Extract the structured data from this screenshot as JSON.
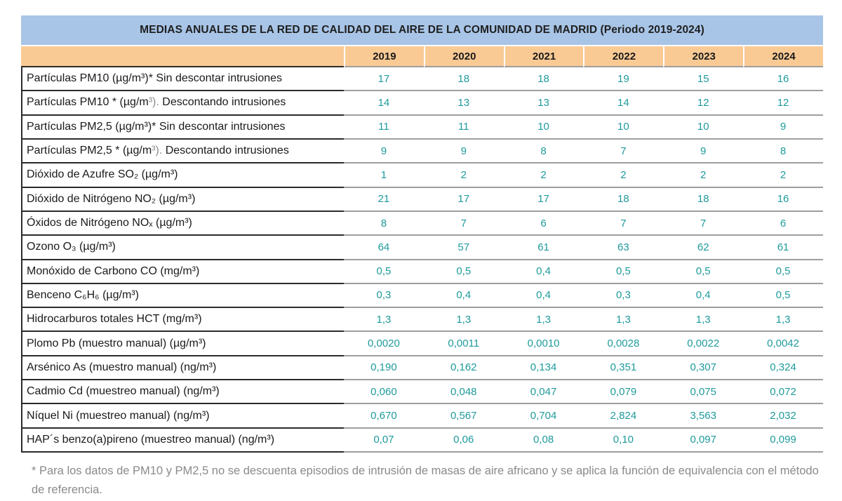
{
  "title": "MEDIAS ANUALES DE LA RED DE CALIDAD DEL AIRE DE LA COMUNIDAD DE MADRID (Periodo 2019-2024)",
  "years": [
    "2019",
    "2020",
    "2021",
    "2022",
    "2023",
    "2024"
  ],
  "rows": [
    {
      "pre": "Partículas PM10 (µg/m³)* Sin descontar intrusiones",
      "gray": "",
      "post": "",
      "values": [
        "17",
        "18",
        "18",
        "19",
        "15",
        "16"
      ]
    },
    {
      "pre": "Partículas PM10 * (µg/m",
      "gray": "³). ",
      "post": "Descontando intrusiones",
      "values": [
        "14",
        "13",
        "13",
        "14",
        "12",
        "12"
      ]
    },
    {
      "pre": "Partículas PM2,5 (µg/m³)* Sin descontar intrusiones",
      "gray": "",
      "post": "",
      "values": [
        "11",
        "11",
        "10",
        "10",
        "10",
        "9"
      ]
    },
    {
      "pre": "Partículas PM2,5 * (µg/m",
      "gray": "³). ",
      "post": "Descontando intrusiones",
      "values": [
        "9",
        "9",
        "8",
        "7",
        "9",
        "8"
      ]
    },
    {
      "pre": "Dióxido de Azufre SO₂ (µg/m³)",
      "gray": "",
      "post": "",
      "values": [
        "1",
        "2",
        "2",
        "2",
        "2",
        "2"
      ]
    },
    {
      "pre": "Dióxido de Nitrógeno NO₂ (µg/m³)",
      "gray": "",
      "post": "",
      "values": [
        "21",
        "17",
        "17",
        "18",
        "18",
        "16"
      ]
    },
    {
      "pre": "Óxidos de Nitrógeno NOₓ (µg/m³)",
      "gray": "",
      "post": "",
      "values": [
        "8",
        "7",
        "6",
        "7",
        "7",
        "6"
      ]
    },
    {
      "pre": "Ozono O₃ (µg/m³)",
      "gray": "",
      "post": "",
      "values": [
        "64",
        "57",
        "61",
        "63",
        "62",
        "61"
      ]
    },
    {
      "pre": "Monóxido de Carbono CO (mg/m³)",
      "gray": "",
      "post": "",
      "values": [
        "0,5",
        "0,5",
        "0,4",
        "0,5",
        "0,5",
        "0,5"
      ]
    },
    {
      "pre": "Benceno C₆H₆ (µg/m³)",
      "gray": "",
      "post": "",
      "values": [
        "0,3",
        "0,4",
        "0,4",
        "0,3",
        "0,4",
        "0,5"
      ]
    },
    {
      "pre": "Hidrocarburos totales HCT (mg/m³)",
      "gray": "",
      "post": "",
      "values": [
        "1,3",
        "1,3",
        "1,3",
        "1,3",
        "1,3",
        "1,3"
      ]
    },
    {
      "pre": "Plomo Pb (muestro manual) (µg/m³)",
      "gray": "",
      "post": "",
      "values": [
        "0,0020",
        "0,0011",
        "0,0010",
        "0,0028",
        "0,0022",
        "0,0042"
      ]
    },
    {
      "pre": "Arsénico As (muestro manual) (ng/m³)",
      "gray": "",
      "post": "",
      "values": [
        "0,190",
        "0,162",
        "0,134",
        "0,351",
        "0,307",
        "0,324"
      ]
    },
    {
      "pre": "Cadmio Cd (muestreo manual) (ng/m³)",
      "gray": "",
      "post": "",
      "values": [
        "0,060",
        "0,048",
        "0,047",
        "0,079",
        "0,075",
        "0,072"
      ]
    },
    {
      "pre": "Níquel Ni (muestreo manual) (ng/m³)",
      "gray": "",
      "post": "",
      "values": [
        "0,670",
        "0,567",
        "0,704",
        "2,824",
        "3,563",
        "2,032"
      ]
    },
    {
      "pre": "HAP´s benzo(a)pireno (muestreo manual) (ng/m³)",
      "gray": "",
      "post": "",
      "values": [
        "0,07",
        "0,06",
        "0,08",
        "0,10",
        "0,097",
        "0,099"
      ]
    }
  ],
  "footnote": "* Para los datos de PM10 y PM2,5 no se descuenta episodios de intrusión de masas de aire africano y se aplica la función de equivalencia con el método de referencia.",
  "colors": {
    "header_blue": "#A8C5E7",
    "year_orange": "#FACA95",
    "value_teal": "#1F9A9C",
    "footnote_gray": "#8A8A8A"
  },
  "chart_data": {
    "type": "table",
    "title": "MEDIAS ANUALES DE LA RED DE CALIDAD DEL AIRE DE LA COMUNIDAD DE MADRID (Periodo 2019-2024)",
    "columns": [
      "2019",
      "2020",
      "2021",
      "2022",
      "2023",
      "2024"
    ],
    "rows": [
      {
        "label": "Partículas PM10 (µg/m³)* Sin descontar intrusiones",
        "values": [
          17,
          18,
          18,
          19,
          15,
          16
        ]
      },
      {
        "label": "Partículas PM10 * (µg/m³). Descontando intrusiones",
        "values": [
          14,
          13,
          13,
          14,
          12,
          12
        ]
      },
      {
        "label": "Partículas PM2,5 (µg/m³)* Sin descontar intrusiones",
        "values": [
          11,
          11,
          10,
          10,
          10,
          9
        ]
      },
      {
        "label": "Partículas PM2,5 * (µg/m³). Descontando intrusiones",
        "values": [
          9,
          9,
          8,
          7,
          9,
          8
        ]
      },
      {
        "label": "Dióxido de Azufre SO₂ (µg/m³)",
        "values": [
          1,
          2,
          2,
          2,
          2,
          2
        ]
      },
      {
        "label": "Dióxido de Nitrógeno NO₂ (µg/m³)",
        "values": [
          21,
          17,
          17,
          18,
          18,
          16
        ]
      },
      {
        "label": "Óxidos de Nitrógeno NOₓ (µg/m³)",
        "values": [
          8,
          7,
          6,
          7,
          7,
          6
        ]
      },
      {
        "label": "Ozono O₃ (µg/m³)",
        "values": [
          64,
          57,
          61,
          63,
          62,
          61
        ]
      },
      {
        "label": "Monóxido de Carbono CO (mg/m³)",
        "values": [
          0.5,
          0.5,
          0.4,
          0.5,
          0.5,
          0.5
        ]
      },
      {
        "label": "Benceno C₆H₆ (µg/m³)",
        "values": [
          0.3,
          0.4,
          0.4,
          0.3,
          0.4,
          0.5
        ]
      },
      {
        "label": "Hidrocarburos totales HCT (mg/m³)",
        "values": [
          1.3,
          1.3,
          1.3,
          1.3,
          1.3,
          1.3
        ]
      },
      {
        "label": "Plomo Pb (muestro manual) (µg/m³)",
        "values": [
          0.002,
          0.0011,
          0.001,
          0.0028,
          0.0022,
          0.0042
        ]
      },
      {
        "label": "Arsénico As (muestro manual) (ng/m³)",
        "values": [
          0.19,
          0.162,
          0.134,
          0.351,
          0.307,
          0.324
        ]
      },
      {
        "label": "Cadmio Cd (muestreo manual) (ng/m³)",
        "values": [
          0.06,
          0.048,
          0.047,
          0.079,
          0.075,
          0.072
        ]
      },
      {
        "label": "Níquel Ni (muestreo manual) (ng/m³)",
        "values": [
          0.67,
          0.567,
          0.704,
          2.824,
          3.563,
          2.032
        ]
      },
      {
        "label": "HAP´s benzo(a)pireno (muestreo manual) (ng/m³)",
        "values": [
          0.07,
          0.06,
          0.08,
          0.1,
          0.097,
          0.099
        ]
      }
    ]
  }
}
